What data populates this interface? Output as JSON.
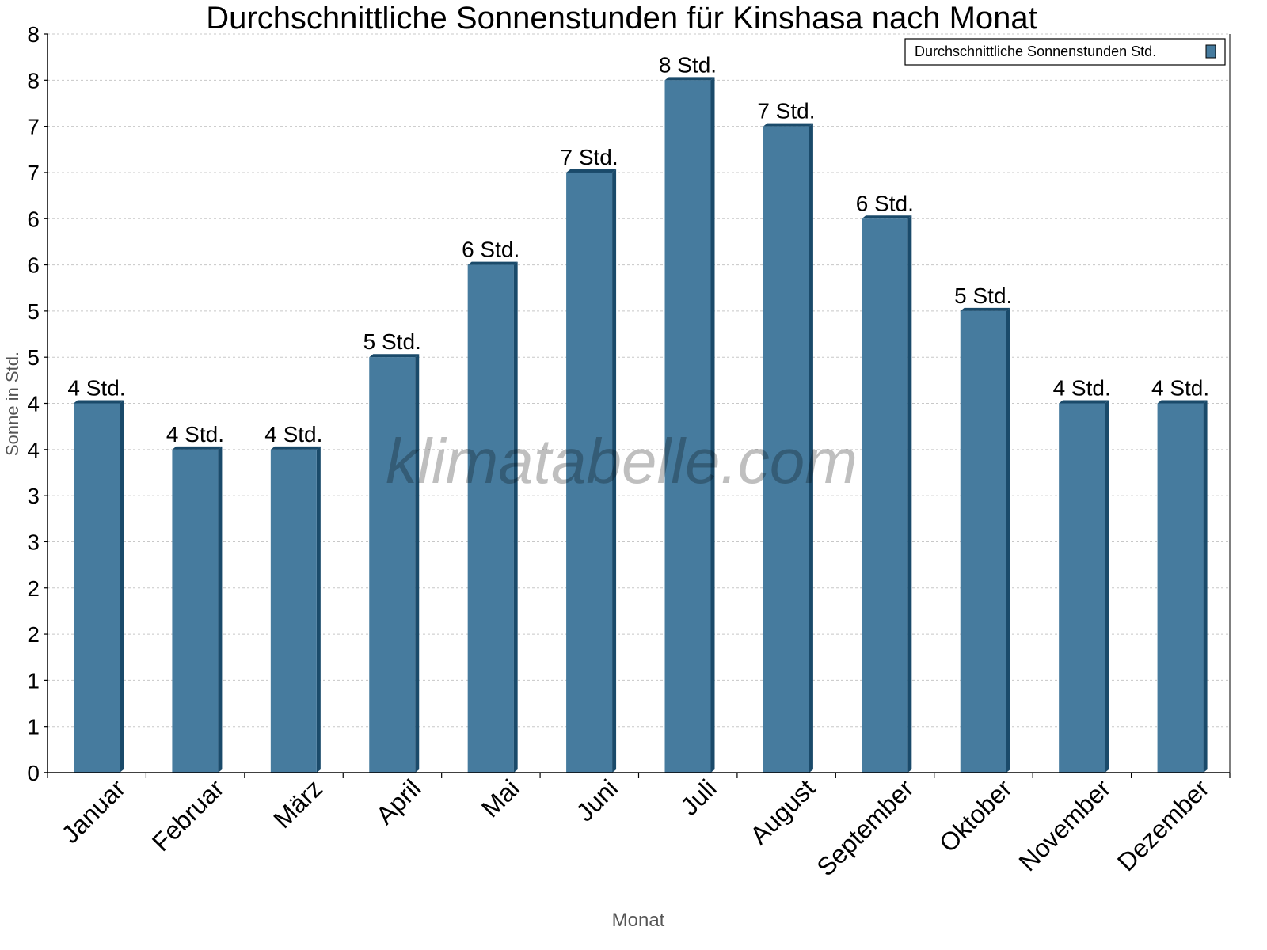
{
  "chart_data": {
    "type": "bar",
    "title": "Durchschnittliche Sonnenstunden für Kinshasa nach Monat",
    "xlabel": "Monat",
    "ylabel": "Sonne in Std.",
    "ylim": [
      0,
      8
    ],
    "grid": true,
    "legend_position": "top-right",
    "y_ticks": [
      0,
      0.5,
      1,
      1.5,
      2,
      2.5,
      3,
      3.5,
      4,
      4.5,
      5,
      5.5,
      6,
      6.5,
      7,
      7.5,
      8
    ],
    "y_tick_labels": [
      "0",
      "1",
      "1",
      "2",
      "2",
      "3",
      "3",
      "4",
      "4",
      "5",
      "5",
      "6",
      "6",
      "7",
      "7",
      "8",
      "8"
    ],
    "categories": [
      "Januar",
      "Februar",
      "März",
      "April",
      "Mai",
      "Juni",
      "Juli",
      "August",
      "September",
      "Oktober",
      "November",
      "Dezember"
    ],
    "series": [
      {
        "name": "Durchschnittliche Sonnenstunden Std.",
        "values": [
          4,
          3.5,
          3.5,
          4.5,
          5.5,
          6.5,
          7.5,
          7,
          6,
          5,
          4,
          4
        ],
        "data_labels": [
          "4 Std.",
          "4 Std.",
          "4 Std.",
          "5 Std.",
          "6 Std.",
          "7 Std.",
          "8 Std.",
          "7 Std.",
          "6 Std.",
          "5 Std.",
          "4 Std.",
          "4 Std."
        ]
      }
    ],
    "colors": {
      "bar": "#467b9e",
      "bar_side": "#1a4a6a",
      "grid": "#c8c8c8"
    },
    "watermark": "klimatabelle.com"
  }
}
